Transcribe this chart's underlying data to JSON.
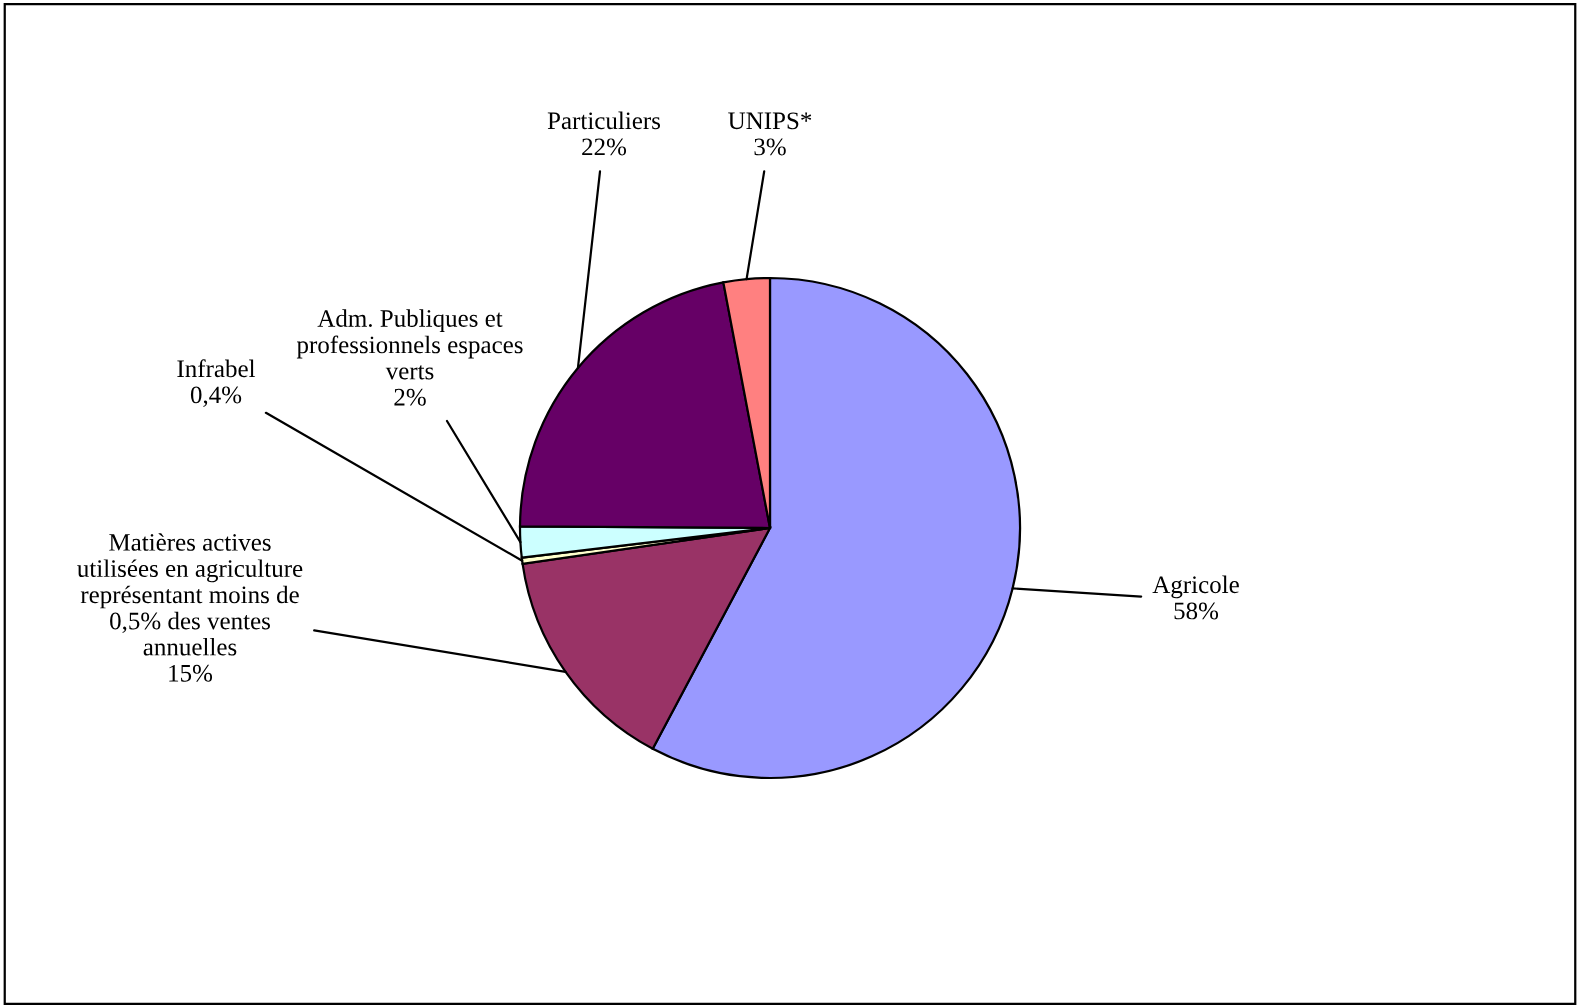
{
  "chart_data": {
    "type": "pie",
    "categories": [
      "Agricole",
      "Matières actives utilisées en agriculture représentant moins de 0,5% des ventes annuelles",
      "Infrabel",
      "Adm. Publiques et professionnels espaces verts",
      "Particuliers",
      "UNIPS*"
    ],
    "values": [
      58,
      15,
      0.4,
      2,
      22,
      3
    ],
    "value_labels": [
      "58%",
      "15%",
      "0,4%",
      "2%",
      "22%",
      "3%"
    ],
    "colors": [
      "#9999ff",
      "#993366",
      "#ffffcc",
      "#ccffff",
      "#660066",
      "#ff8080"
    ]
  }
}
